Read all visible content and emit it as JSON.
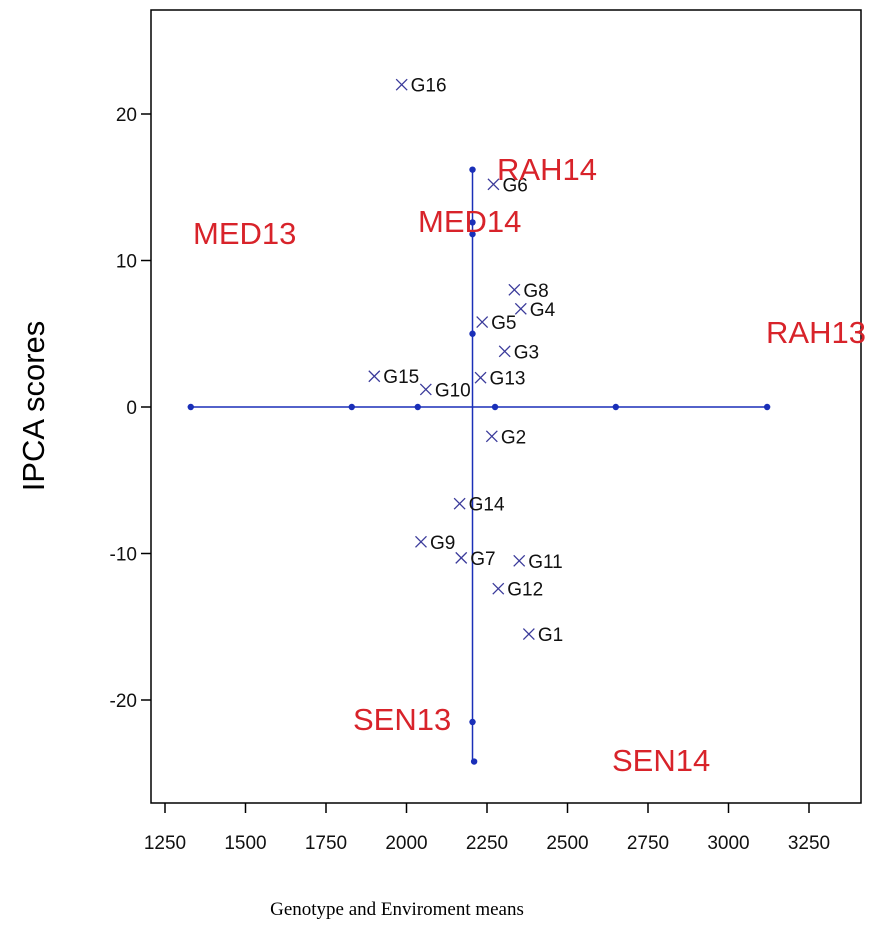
{
  "chart_data": {
    "type": "scatter",
    "title": "",
    "xlabel": "Genotype and Enviroment means",
    "ylabel": "IPCA scores",
    "xlim": [
      1200,
      3400
    ],
    "ylim": [
      -27,
      27
    ],
    "xticks": [
      1250,
      1500,
      1750,
      2000,
      2250,
      2500,
      2750,
      3000,
      3250
    ],
    "yticks": [
      -20,
      -10,
      0,
      10,
      20
    ],
    "grid": false,
    "genotypes": [
      {
        "label": "G16",
        "x": 1985,
        "y": 22
      },
      {
        "label": "G6",
        "x": 2270,
        "y": 15.2
      },
      {
        "label": "G8",
        "x": 2335,
        "y": 8
      },
      {
        "label": "G4",
        "x": 2355,
        "y": 6.7
      },
      {
        "label": "G5",
        "x": 2235,
        "y": 5.8
      },
      {
        "label": "G3",
        "x": 2305,
        "y": 3.8
      },
      {
        "label": "G15",
        "x": 1900,
        "y": 2.1
      },
      {
        "label": "G13",
        "x": 2230,
        "y": 2
      },
      {
        "label": "G10",
        "x": 2060,
        "y": 1.2
      },
      {
        "label": "G2",
        "x": 2265,
        "y": -2
      },
      {
        "label": "G14",
        "x": 2165,
        "y": -6.6
      },
      {
        "label": "G9",
        "x": 2045,
        "y": -9.2
      },
      {
        "label": "G7",
        "x": 2170,
        "y": -10.3
      },
      {
        "label": "G11",
        "x": 2350,
        "y": -10.5
      },
      {
        "label": "G12",
        "x": 2285,
        "y": -12.4
      },
      {
        "label": "G1",
        "x": 2380,
        "y": -15.5
      }
    ],
    "environments": [
      {
        "label": "RAH14",
        "x": 2205,
        "y": 16.2
      },
      {
        "label": "MED14",
        "x": 2205,
        "y": 11.8
      },
      {
        "label": "MED13",
        "x": 1330,
        "y": 12
      },
      {
        "label": "RAH13",
        "x": 3120,
        "y": 0
      },
      {
        "label": "SEN13",
        "x": 2205,
        "y": -21.5
      },
      {
        "label": "SEN14",
        "x": 2210,
        "y": -24.2
      }
    ],
    "environment_points": [
      {
        "x": 2205,
        "y": 16.2
      },
      {
        "x": 2205,
        "y": 12.6
      },
      {
        "x": 2205,
        "y": 11.8
      },
      {
        "x": 2205,
        "y": 5
      },
      {
        "x": 2205,
        "y": -21.5
      },
      {
        "x": 2210,
        "y": -24.2
      },
      {
        "x": 1330,
        "y": 0
      },
      {
        "x": 1830,
        "y": 0
      },
      {
        "x": 2035,
        "y": 0
      },
      {
        "x": 2275,
        "y": 0
      },
      {
        "x": 2650,
        "y": 0
      },
      {
        "x": 3120,
        "y": 0
      }
    ],
    "reference_lines": {
      "horizontal": {
        "y": 0,
        "x_from": 1330,
        "x_to": 3120
      },
      "vertical": {
        "x": 2205,
        "y_from": -24.2,
        "y_to": 16.2
      }
    },
    "colors": {
      "genotype_marker": "#3a3a9a",
      "environment_label": "#d8232a",
      "line": "#1a2fb8",
      "axis": "#000000"
    }
  }
}
